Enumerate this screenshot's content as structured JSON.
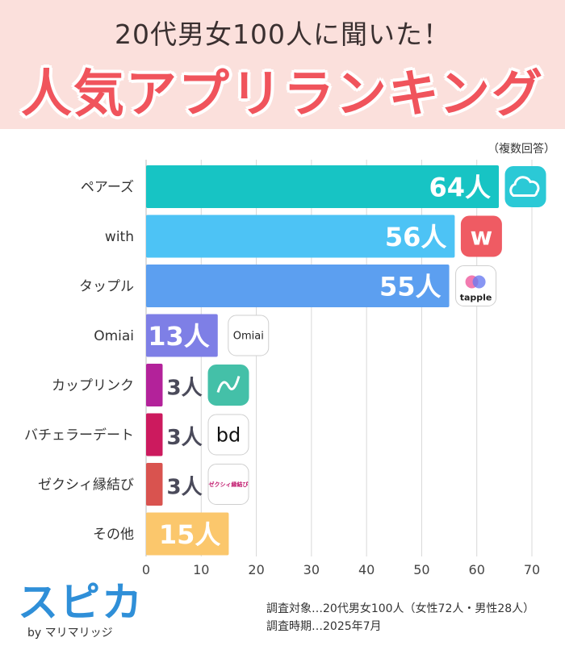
{
  "header": {
    "subtitle": "20代男女100人に聞いた！",
    "title": "人気アプリランキング"
  },
  "note": "（複数回答）",
  "chart_data": {
    "type": "bar",
    "orientation": "horizontal",
    "categories": [
      "ペアーズ",
      "with",
      "タップル",
      "Omiai",
      "カップリンク",
      "バチェラーデート",
      "ゼクシィ縁結び",
      "その他"
    ],
    "values": [
      64,
      56,
      55,
      13,
      3,
      3,
      3,
      15
    ],
    "value_labels": [
      "64人",
      "56人",
      "55人",
      "13人",
      "3人",
      "3人",
      "3人",
      "15人"
    ],
    "colors": [
      "#17c4c4",
      "#4dc3f5",
      "#5c9ff0",
      "#7e7fe6",
      "#b3229a",
      "#cc1a5e",
      "#d9534f",
      "#fbc76c"
    ],
    "xlim": [
      0,
      70
    ],
    "xticks": [
      0,
      10,
      20,
      30,
      40,
      50,
      60,
      70
    ],
    "grid": true,
    "app_icons": [
      {
        "name": "pairs-icon",
        "text": "",
        "color": "#2bc9d6"
      },
      {
        "name": "with-icon",
        "text": "w",
        "color": "#ef5b63"
      },
      {
        "name": "tapple-icon",
        "text": "tapple",
        "color": "#ffffff"
      },
      {
        "name": "omiai-icon",
        "text": "Omiai",
        "color": "#ffffff"
      },
      {
        "name": "couplink-icon",
        "text": "",
        "color": "#44c0a8"
      },
      {
        "name": "bachelor-date-icon",
        "text": "bd",
        "color": "#ffffff"
      },
      {
        "name": "zexy-enmusubi-icon",
        "text": "ゼクシィ縁結び",
        "color": "#ffffff"
      },
      null
    ]
  },
  "footer": {
    "logo": "スピカ",
    "by": "by マリマリッジ",
    "survey_target": "調査対象…20代男女100人（女性72人・男性28人）",
    "survey_period": "調査時期…2025年7月"
  }
}
